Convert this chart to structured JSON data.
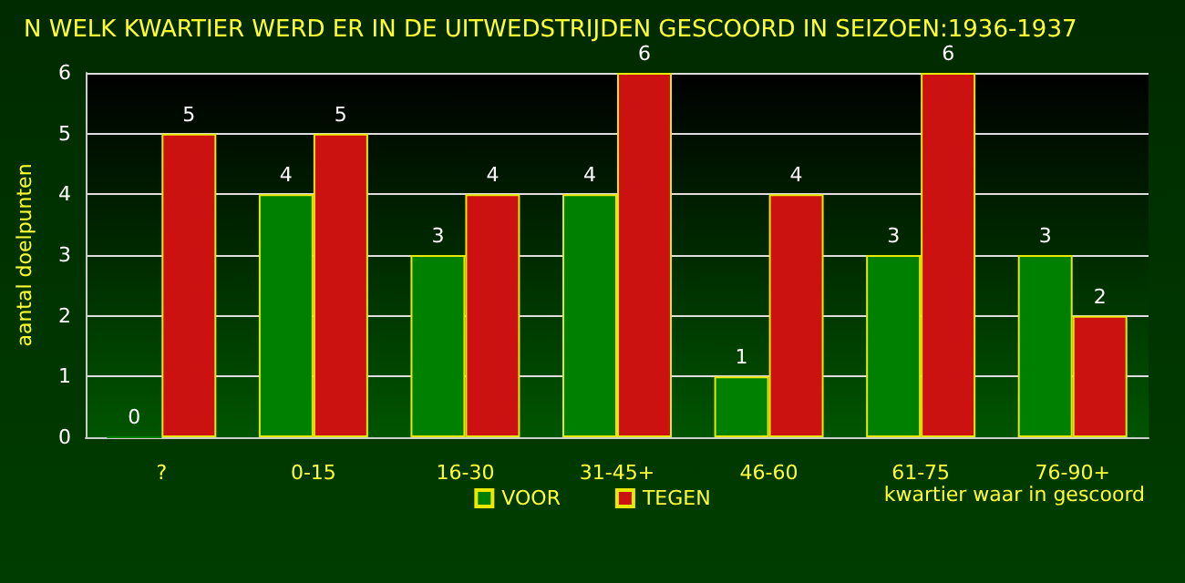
{
  "chart_data": {
    "type": "bar",
    "title": "N WELK KWARTIER WERD ER IN DE UITWEDSTRIJDEN GESCOORD IN SEIZOEN:1936-1937",
    "xlabel": "kwartier waar in gescoord",
    "ylabel": "aantal doelpunten",
    "categories": [
      "?",
      "0-15",
      "16-30",
      "31-45+",
      "46-60",
      "61-75",
      "76-90+"
    ],
    "series": [
      {
        "name": "VOOR",
        "color": "#008000",
        "values": [
          0,
          4,
          3,
          4,
          1,
          3,
          3
        ]
      },
      {
        "name": "TEGEN",
        "color": "#cc1111",
        "values": [
          5,
          5,
          4,
          6,
          4,
          6,
          2
        ]
      }
    ],
    "ylim": [
      0,
      6
    ],
    "yticks": [
      0,
      1,
      2,
      3,
      4,
      5,
      6
    ],
    "grid": "y",
    "legend": "bottom",
    "data_labels": true
  }
}
